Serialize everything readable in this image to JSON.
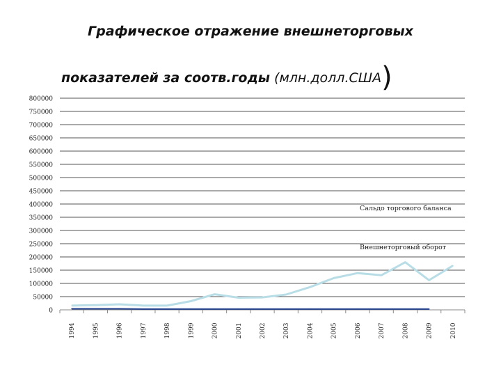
{
  "title": {
    "line1": "Графическое отражение внешнеторговых",
    "line2_bold": "показателей за соотв.годы",
    "line2_normal": " (млн.долл.США",
    "paren": ")"
  },
  "colors": {
    "turnover": "#b8dde6",
    "balance": "#1f3e8c",
    "grid": "#555555",
    "ticks": "#888888"
  },
  "chart_data": {
    "type": "line",
    "x": [
      "1994",
      "1995",
      "1996",
      "1997",
      "1998",
      "1999",
      "2000",
      "2001",
      "2002",
      "2003",
      "2004",
      "2005",
      "2006",
      "2007",
      "2008",
      "2009",
      "2010"
    ],
    "ylim": [
      0,
      800000
    ],
    "yticks": [
      "0",
      "50000",
      "100000",
      "150000",
      "200000",
      "250000",
      "300000",
      "350000",
      "400000",
      "450000",
      "500000",
      "550000",
      "600000",
      "650000",
      "700000",
      "750000",
      "800000"
    ],
    "grid": true,
    "legend_position": "inline-right",
    "series": [
      {
        "name": "Сальдо торгового баланса",
        "values": [
          4000,
          4000,
          4000,
          3000,
          3000,
          3000,
          3000,
          3000,
          3000,
          3000,
          3000,
          3000,
          3000,
          3000,
          3000,
          3000,
          null
        ]
      },
      {
        "name": "Внешнеторговый оборот",
        "values": [
          16000,
          18000,
          21000,
          16000,
          16000,
          33000,
          59000,
          46000,
          47000,
          58000,
          86000,
          120000,
          139000,
          131000,
          180000,
          112000,
          167000
        ]
      }
    ]
  }
}
